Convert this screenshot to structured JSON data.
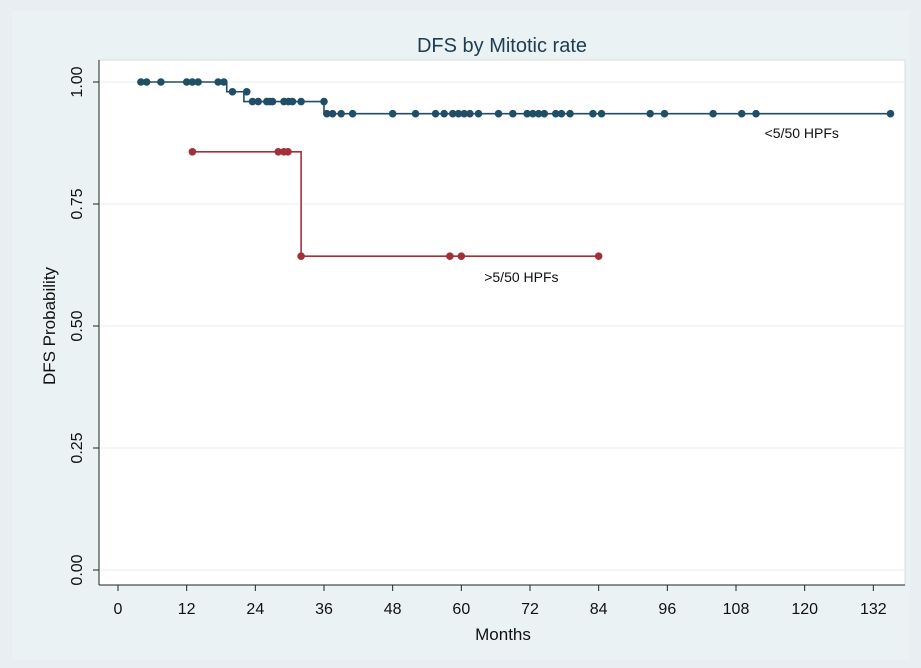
{
  "chart_data": {
    "type": "line",
    "title": "DFS by Mitotic rate",
    "xlabel": "Months",
    "ylabel": "DFS Probability",
    "xlim": [
      0,
      135
    ],
    "ylim": [
      0,
      1
    ],
    "x_ticks": [
      0,
      12,
      24,
      36,
      48,
      60,
      72,
      84,
      96,
      108,
      120,
      132
    ],
    "y_ticks": [
      {
        "value": 0.0,
        "label": "0.00"
      },
      {
        "value": 0.25,
        "label": "0.25"
      },
      {
        "value": 0.5,
        "label": "0.50"
      },
      {
        "value": 0.75,
        "label": "0.75"
      },
      {
        "value": 1.0,
        "label": "1.00"
      }
    ],
    "grid": "horizontal",
    "series": [
      {
        "name": "<5/50 HPFs",
        "color": "#1f4e66",
        "label_at": [
          113,
          0.885
        ],
        "steps": [
          [
            4,
            1.0
          ],
          [
            19,
            1.0
          ],
          [
            19,
            0.98
          ],
          [
            22,
            0.98
          ],
          [
            22,
            0.96
          ],
          [
            36,
            0.96
          ],
          [
            36,
            0.935
          ],
          [
            135,
            0.935
          ]
        ],
        "censored": [
          [
            4,
            1.0
          ],
          [
            5,
            1.0
          ],
          [
            7.5,
            1.0
          ],
          [
            12,
            1.0
          ],
          [
            13,
            1.0
          ],
          [
            14,
            1.0
          ],
          [
            17.5,
            1.0
          ],
          [
            18.5,
            1.0
          ],
          [
            20,
            0.98
          ],
          [
            22.5,
            0.98
          ],
          [
            23.5,
            0.96
          ],
          [
            24.5,
            0.96
          ],
          [
            26,
            0.96
          ],
          [
            26.5,
            0.96
          ],
          [
            27,
            0.96
          ],
          [
            29,
            0.96
          ],
          [
            29.8,
            0.96
          ],
          [
            30.5,
            0.96
          ],
          [
            32,
            0.96
          ],
          [
            36,
            0.96
          ],
          [
            36.5,
            0.935
          ],
          [
            37.5,
            0.935
          ],
          [
            39,
            0.935
          ],
          [
            41,
            0.935
          ],
          [
            48,
            0.935
          ],
          [
            52,
            0.935
          ],
          [
            55.5,
            0.935
          ],
          [
            57,
            0.935
          ],
          [
            58.5,
            0.935
          ],
          [
            59.5,
            0.935
          ],
          [
            60.5,
            0.935
          ],
          [
            61.5,
            0.935
          ],
          [
            63,
            0.935
          ],
          [
            66.5,
            0.935
          ],
          [
            69,
            0.935
          ],
          [
            71.5,
            0.935
          ],
          [
            72.5,
            0.935
          ],
          [
            73.5,
            0.935
          ],
          [
            74.5,
            0.935
          ],
          [
            76.5,
            0.935
          ],
          [
            77.5,
            0.935
          ],
          [
            79,
            0.935
          ],
          [
            83,
            0.935
          ],
          [
            84.5,
            0.935
          ],
          [
            93,
            0.935
          ],
          [
            95.5,
            0.935
          ],
          [
            104,
            0.935
          ],
          [
            109,
            0.935
          ],
          [
            111.5,
            0.935
          ],
          [
            135,
            0.935
          ]
        ]
      },
      {
        "name": ">5/50 HPFs",
        "color": "#a33038",
        "label_at": [
          64,
          0.59
        ],
        "steps": [
          [
            13,
            0.857
          ],
          [
            32,
            0.857
          ],
          [
            32,
            0.643
          ],
          [
            84,
            0.643
          ]
        ],
        "censored": [
          [
            13,
            0.857
          ],
          [
            28,
            0.857
          ],
          [
            29,
            0.857
          ],
          [
            29.7,
            0.857
          ],
          [
            32,
            0.643
          ],
          [
            58,
            0.643
          ],
          [
            60,
            0.643
          ],
          [
            84,
            0.643
          ]
        ]
      }
    ]
  }
}
